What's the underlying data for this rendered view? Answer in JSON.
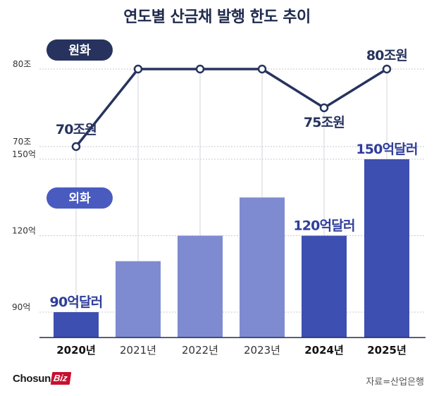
{
  "title": "연도별 산금채 발행 한도 추이",
  "source": "자료=산업은행",
  "logo": {
    "main": "Chosun",
    "biz": "Biz"
  },
  "colors": {
    "navy": "#1f2b4d",
    "line": "#27335e",
    "bar_strong": "#3d4fb0",
    "bar_light": "#7e8bd0",
    "pill_won": "#27335e",
    "pill_fx": "#4a5bc0",
    "value_label": "#2f3d9b"
  },
  "chart_data": [
    {
      "type": "line",
      "badge": "원화",
      "x": [
        "2020년",
        "2021년",
        "2022년",
        "2023년",
        "2024년",
        "2025년"
      ],
      "values": [
        70,
        80,
        80,
        80,
        75,
        80
      ],
      "ylim": [
        70,
        80
      ],
      "yticks": [
        "70조",
        "80조"
      ],
      "data_labels": [
        {
          "index": 0,
          "text": "70조원"
        },
        {
          "index": 4,
          "text": "75조원"
        },
        {
          "index": 5,
          "text": "80조원"
        }
      ]
    },
    {
      "type": "bar",
      "badge": "외화",
      "categories": [
        "2020년",
        "2021년",
        "2022년",
        "2023년",
        "2024년",
        "2025년"
      ],
      "values": [
        90,
        110,
        120,
        135,
        120,
        150
      ],
      "ylim": [
        90,
        150
      ],
      "yticks": [
        "90억",
        "120억",
        "150억"
      ],
      "highlighted": [
        0,
        4,
        5
      ],
      "data_labels": [
        {
          "index": 0,
          "text": "90억달러"
        },
        {
          "index": 4,
          "text": "120억달러"
        },
        {
          "index": 5,
          "text": "150억달러"
        }
      ]
    }
  ]
}
